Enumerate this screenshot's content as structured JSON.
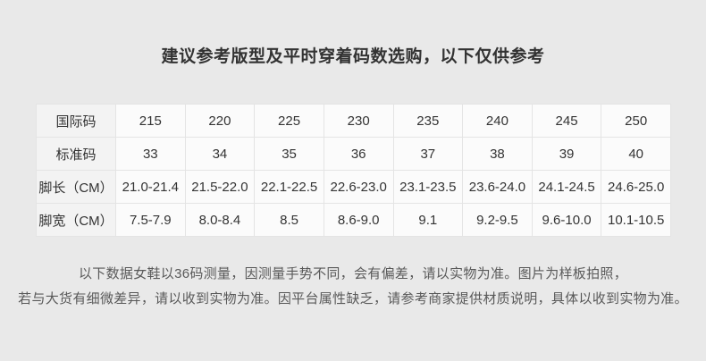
{
  "title": "建议参考版型及平时穿着码数选购，以下仅供参考",
  "size_table": {
    "rows": [
      {
        "label": "国际码",
        "values": [
          "215",
          "220",
          "225",
          "230",
          "235",
          "240",
          "245",
          "250"
        ]
      },
      {
        "label": "标准码",
        "values": [
          "33",
          "34",
          "35",
          "36",
          "37",
          "38",
          "39",
          "40"
        ]
      },
      {
        "label": "脚长（CM）",
        "values": [
          "21.0-21.4",
          "21.5-22.0",
          "22.1-22.5",
          "22.6-23.0",
          "23.1-23.5",
          "23.6-24.0",
          "24.1-24.5",
          "24.6-25.0"
        ]
      },
      {
        "label": "脚宽（CM）",
        "values": [
          "7.5-7.9",
          "8.0-8.4",
          "8.5",
          "8.6-9.0",
          "9.1",
          "9.2-9.5",
          "9.6-10.0",
          "10.1-10.5"
        ]
      }
    ]
  },
  "footnote": {
    "line1": "以下数据女鞋以36码测量，因测量手势不同，会有偏差，请以实物为准。图片为样板拍照，",
    "line2": "若与大货有细微差异，请以收到实物为准。因平台属性缺乏，请参考商家提供材质说明，具体以收到实物为准。"
  },
  "colors": {
    "page_bg": "#e9e9e9",
    "cell_bg": "#fbfbfb",
    "label_cell_bg": "#f3f3f3",
    "border": "#e4e4e4",
    "title_text": "#333333",
    "table_text": "#333333",
    "note_text": "#595959"
  }
}
